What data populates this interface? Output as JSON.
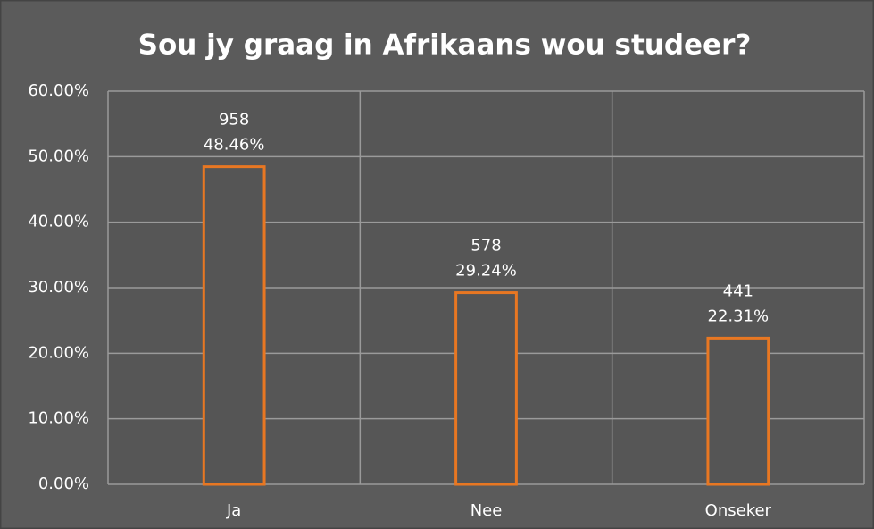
{
  "chart_data": {
    "type": "bar",
    "title": "Sou jy graag in Afrikaans wou studeer?",
    "categories": [
      "Ja",
      "Nee",
      "Onseker"
    ],
    "values": [
      48.46,
      29.24,
      22.31
    ],
    "value_labels": [
      "48.46%",
      "29.24%",
      "22.31%"
    ],
    "counts": [
      958,
      578,
      441
    ],
    "color": "#e87722",
    "ylim": [
      0,
      60
    ],
    "yticks": [
      {
        "value": 0,
        "label": "0.00%"
      },
      {
        "value": 10,
        "label": "10.00%"
      },
      {
        "value": 20,
        "label": "20.00%"
      },
      {
        "value": 30,
        "label": "30.00%"
      },
      {
        "value": 40,
        "label": "40.00%"
      },
      {
        "value": 50,
        "label": "50.00%"
      },
      {
        "value": 60,
        "label": "60.00%"
      }
    ],
    "grid": true
  }
}
